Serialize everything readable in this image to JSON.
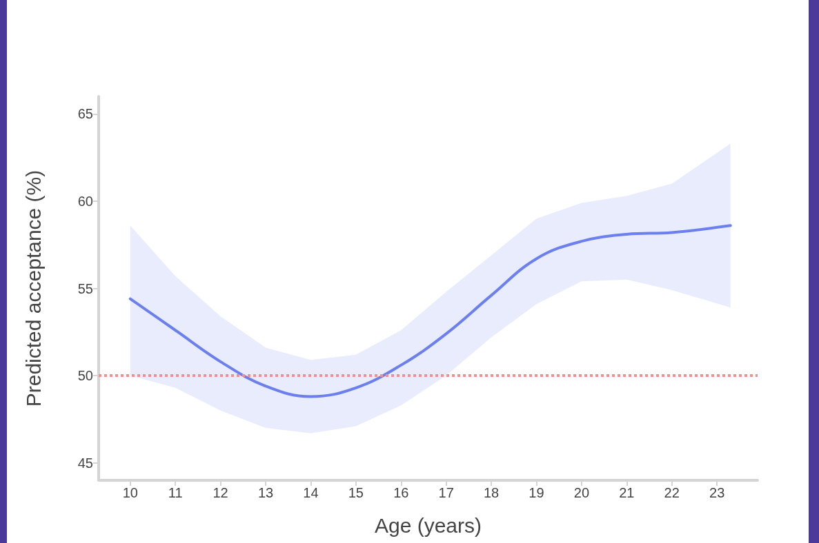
{
  "chart_data": {
    "type": "line",
    "xlabel": "Age (years)",
    "ylabel": "Predicted acceptance (%)",
    "xlim": [
      9.3,
      23.9
    ],
    "xticks": [
      10,
      11,
      12,
      13,
      14,
      15,
      16,
      17,
      18,
      19,
      20,
      21,
      22,
      23
    ],
    "ylim": [
      44,
      66
    ],
    "yticks": [
      45,
      50,
      55,
      60,
      65
    ],
    "grid": false,
    "marker": "none",
    "line_style": "solid",
    "x": [
      10,
      11,
      12,
      13,
      14,
      15,
      16,
      17,
      18,
      19,
      20,
      21,
      22,
      23.3
    ],
    "series": [
      {
        "color": "#6b80ee",
        "values": [
          54.4,
          52.6,
          50.8,
          49.4,
          48.8,
          49.3,
          50.6,
          52.4,
          54.6,
          56.7,
          57.7,
          58.1,
          58.2,
          58.6
        ],
        "lower": [
          50.0,
          49.3,
          48.0,
          47.0,
          46.7,
          47.1,
          48.3,
          50.0,
          52.2,
          54.1,
          55.4,
          55.5,
          54.9,
          53.9
        ],
        "upper": [
          58.6,
          55.7,
          53.4,
          51.6,
          50.9,
          51.2,
          52.6,
          54.8,
          56.9,
          59.0,
          59.9,
          60.3,
          61.0,
          63.3
        ]
      }
    ],
    "ref_lines": [
      {
        "axis": "y",
        "value": 50,
        "color": "#f4908c",
        "line_style": "dotted"
      }
    ]
  }
}
